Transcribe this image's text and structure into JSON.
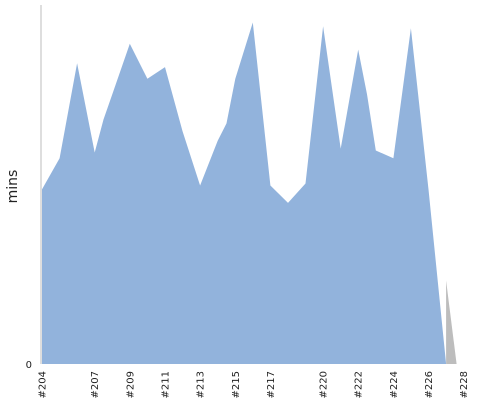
{
  "chart_data": {
    "type": "area",
    "ylabel": "mins",
    "y_tick_labels": [
      "0"
    ],
    "ylim": [
      0,
      18.5
    ],
    "x_tick_labels": [
      "#204",
      "#207",
      "#209",
      "#211",
      "#213",
      "#215",
      "#217",
      "#220",
      "#222",
      "#224",
      "#226",
      "#228"
    ],
    "x_tick_builds": [
      204,
      207,
      209,
      211,
      213,
      215,
      217,
      220,
      222,
      224,
      226,
      228
    ],
    "x_range": [
      204,
      229.5
    ],
    "series": [
      {
        "color": "#92b3dc",
        "points": [
          [
            204,
            9.0
          ],
          [
            205,
            10.6
          ],
          [
            206,
            15.5
          ],
          [
            207,
            10.9
          ],
          [
            207.5,
            12.6
          ],
          [
            208,
            13.9
          ],
          [
            209,
            16.5
          ],
          [
            210,
            14.7
          ],
          [
            211,
            15.3
          ],
          [
            212,
            12.0
          ],
          [
            213,
            9.2
          ],
          [
            214,
            11.5
          ],
          [
            214.5,
            12.4
          ],
          [
            215,
            14.7
          ],
          [
            216,
            17.6
          ],
          [
            217,
            9.2
          ],
          [
            218,
            8.3
          ],
          [
            219,
            9.3
          ],
          [
            220,
            17.4
          ],
          [
            221,
            11.1
          ],
          [
            222,
            16.2
          ],
          [
            222.5,
            13.9
          ],
          [
            223,
            11.0
          ],
          [
            224,
            10.6
          ],
          [
            225,
            17.3
          ],
          [
            226,
            9.0
          ],
          [
            227,
            0
          ]
        ]
      },
      {
        "color": "#bdbdbd",
        "points": [
          [
            227,
            0
          ],
          [
            227,
            4.3
          ],
          [
            227.6,
            0
          ]
        ]
      }
    ]
  }
}
